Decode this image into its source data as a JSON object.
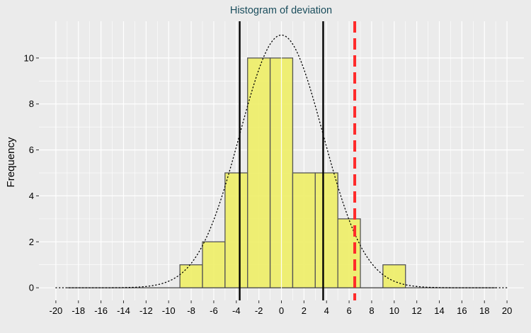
{
  "chart_data": {
    "type": "bar",
    "title": "Histogram of deviation",
    "xlabel": "",
    "ylabel": "Frequency",
    "bins": [
      {
        "start": -9,
        "end": -7,
        "count": 1
      },
      {
        "start": -7,
        "end": -5,
        "count": 2
      },
      {
        "start": -5,
        "end": -3,
        "count": 5
      },
      {
        "start": -3,
        "end": -1,
        "count": 10
      },
      {
        "start": -1,
        "end": 1,
        "count": 10
      },
      {
        "start": 1,
        "end": 3,
        "count": 5
      },
      {
        "start": 3,
        "end": 5,
        "count": 5
      },
      {
        "start": 5,
        "end": 7,
        "count": 3
      },
      {
        "start": 7,
        "end": 9,
        "count": 0
      },
      {
        "start": 9,
        "end": 11,
        "count": 1
      }
    ],
    "x_ticks": [
      -20,
      -18,
      -16,
      -14,
      -12,
      -10,
      -8,
      -6,
      -4,
      -2,
      0,
      2,
      4,
      6,
      8,
      10,
      12,
      14,
      16,
      18,
      20
    ],
    "y_ticks": [
      0,
      2,
      4,
      6,
      8,
      10
    ],
    "xlim": [
      -21.5,
      21.5
    ],
    "ylim": [
      -0.55,
      11.6
    ],
    "vertical_lines": [
      {
        "x": -3.7,
        "style": "solid",
        "color": "#000000"
      },
      {
        "x": 3.7,
        "style": "solid",
        "color": "#000000"
      },
      {
        "x": 6.5,
        "style": "dashed",
        "color": "#ff2a2a"
      },
      {
        "x": 0,
        "style": "solid",
        "color": "#ffffff"
      }
    ],
    "normal_curve": {
      "mean": 0,
      "sd": 3.7,
      "peak": 11.0,
      "x_range": [
        -20,
        20
      ],
      "style": "dotted",
      "color": "#000000"
    },
    "bar_fill": "#eeee66",
    "bar_border": "#555555",
    "background": "#ebebeb",
    "grid": true,
    "grid_color": "#ffffff",
    "title_color": "#1a4d5c"
  }
}
